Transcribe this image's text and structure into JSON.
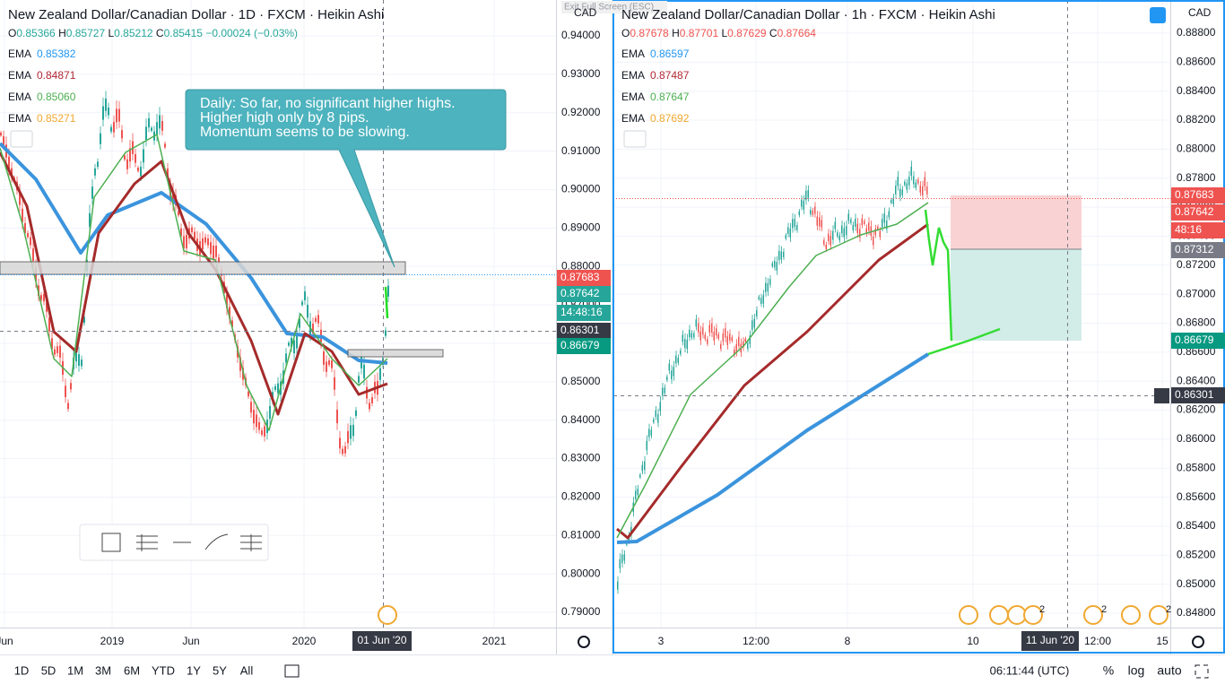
{
  "exit_full_screen": "Exit Full Screen (ESC)",
  "left": {
    "title": "New Zealand Dollar/Canadian Dollar · 1D · FXCM · Heikin Ashi",
    "currency": "CAD",
    "ohlc_color": "#26a69a",
    "ohlc": [
      {
        "k": "O",
        "v": "0.85366"
      },
      {
        "k": "H",
        "v": "0.85727"
      },
      {
        "k": "L",
        "v": "0.85212"
      },
      {
        "k": "C",
        "v": "0.85415"
      }
    ],
    "change": "−0.00024 (−0.03%)",
    "emas": [
      {
        "label": "EMA",
        "value": "0.85382",
        "color": "#2196f3"
      },
      {
        "label": "EMA",
        "value": "0.84871",
        "color": "#b22833"
      },
      {
        "label": "EMA",
        "value": "0.85060",
        "color": "#4caf50"
      },
      {
        "label": "EMA",
        "value": "0.85271",
        "color": "#f0a830"
      }
    ],
    "annotation": [
      "Daily: So far, no significant higher highs.",
      "Higher high only by 8 pips.",
      "Momentum seems to be slowing."
    ],
    "price_ticks": [
      "0.94000",
      "0.93000",
      "0.92000",
      "0.91000",
      "0.90000",
      "0.89000",
      "0.88000",
      "0.87000",
      "0.86000",
      "0.85000",
      "0.84000",
      "0.83000",
      "0.82000",
      "0.81000",
      "0.80000",
      "0.79000"
    ],
    "price_tags": [
      {
        "text": "0.87683",
        "color": "#ef5350"
      },
      {
        "text": "0.87642",
        "color": "#26a69a"
      },
      {
        "text": "14:48:16",
        "color": "#26a69a"
      },
      {
        "text": "0.86301",
        "color": "#363a45"
      },
      {
        "text": "0.86679",
        "color": "#089981"
      }
    ],
    "x_labels": [
      "Jun",
      "2019",
      "Jun",
      "2020",
      "2021"
    ],
    "date_label": "01 Jun '20"
  },
  "right": {
    "title": "New Zealand Dollar/Canadian Dollar · 1h · FXCM · Heikin Ashi",
    "currency": "CAD",
    "ohlc_color": "#ef5350",
    "ohlc": [
      {
        "k": "O",
        "v": "0.87678"
      },
      {
        "k": "H",
        "v": "0.87701"
      },
      {
        "k": "L",
        "v": "0.87629"
      },
      {
        "k": "C",
        "v": "0.87664"
      }
    ],
    "emas": [
      {
        "label": "EMA",
        "value": "0.86597",
        "color": "#2196f3"
      },
      {
        "label": "EMA",
        "value": "0.87487",
        "color": "#b22833"
      },
      {
        "label": "EMA",
        "value": "0.87647",
        "color": "#4caf50"
      },
      {
        "label": "EMA",
        "value": "0.87692",
        "color": "#f0a830"
      }
    ],
    "price_ticks": [
      "0.88800",
      "0.88600",
      "0.88400",
      "0.88200",
      "0.88000",
      "0.87800",
      "0.87600",
      "0.87400",
      "0.87200",
      "0.87000",
      "0.86800",
      "0.86600",
      "0.86400",
      "0.86200",
      "0.86000",
      "0.85800",
      "0.85600",
      "0.85400",
      "0.85200",
      "0.85000",
      "0.84800"
    ],
    "price_tags": [
      {
        "text": "0.87683",
        "color": "#ef5350"
      },
      {
        "text": "0.87642",
        "color": "#ef5350"
      },
      {
        "text": "48:16",
        "color": "#ef5350"
      },
      {
        "text": "0.87312",
        "color": "#787b86"
      },
      {
        "text": "0.86679",
        "color": "#089981"
      },
      {
        "text": "0.86301",
        "color": "#363a45"
      }
    ],
    "x_labels": [
      "3",
      "12:00",
      "8",
      "10",
      "12:00",
      "15"
    ],
    "date_label": "11 Jun '20",
    "event_counts": [
      "2",
      "2",
      "2"
    ]
  },
  "toolbar": {
    "intervals": [
      "1D",
      "5D",
      "1M",
      "3M",
      "6M",
      "YTD",
      "1Y",
      "5Y",
      "All"
    ],
    "time": "06:11:44 (UTC)",
    "options": [
      "%",
      "log",
      "auto"
    ]
  }
}
